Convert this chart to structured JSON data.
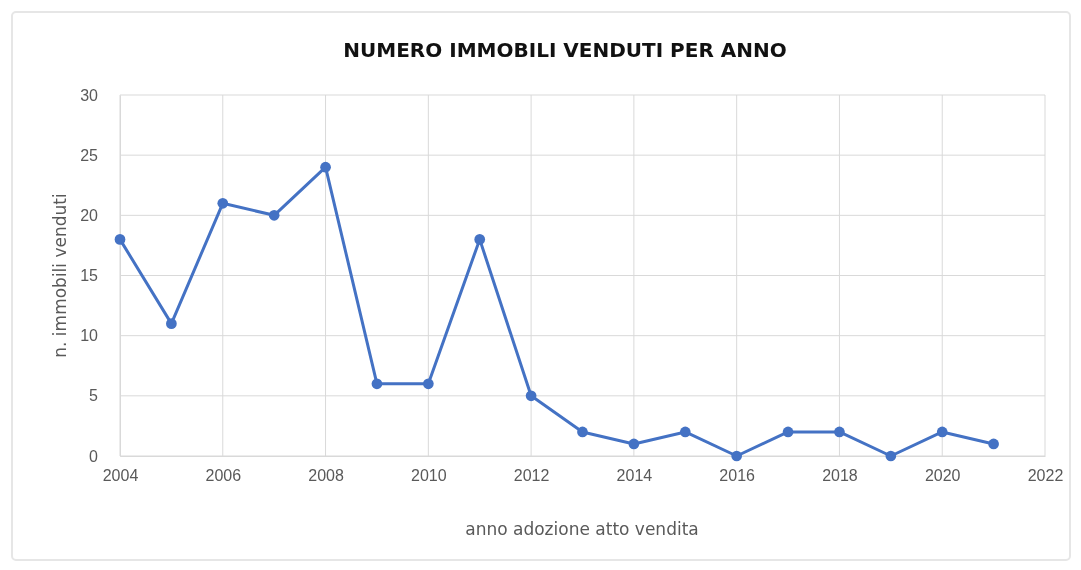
{
  "chart_data": {
    "type": "line",
    "title": "NUMERO IMMOBILI VENDUTI PER ANNO",
    "xlabel": "anno adozione atto  vendita",
    "ylabel": "n. immobili venduti",
    "x": [
      2004,
      2005,
      2006,
      2007,
      2008,
      2009,
      2010,
      2011,
      2012,
      2013,
      2014,
      2015,
      2016,
      2017,
      2018,
      2019,
      2020,
      2021
    ],
    "series": [
      {
        "color": "#4472c4",
        "values": [
          18,
          11,
          21,
          20,
          24,
          6,
          6,
          18,
          5,
          2,
          1,
          2,
          0,
          2,
          2,
          0,
          2,
          1
        ]
      }
    ],
    "xlim": [
      2004,
      2022
    ],
    "xticks": [
      2004,
      2006,
      2008,
      2010,
      2012,
      2014,
      2016,
      2018,
      2020,
      2022
    ],
    "ylim": [
      0,
      30
    ],
    "yticks": [
      0,
      5,
      10,
      15,
      20,
      25,
      30
    ],
    "grid": true,
    "marker": "circle",
    "line_style": "solid"
  }
}
